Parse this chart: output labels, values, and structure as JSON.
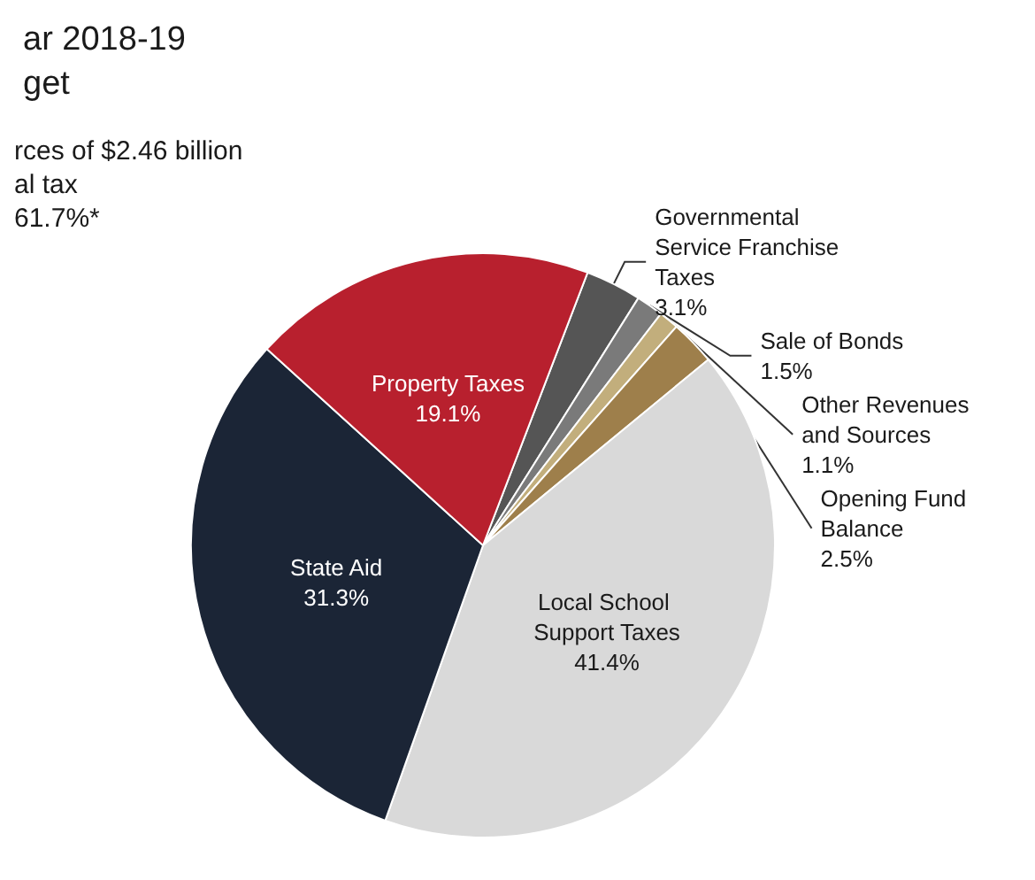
{
  "chart_data": {
    "type": "pie",
    "title": "ar 2018-19",
    "subtitle": "get",
    "annotations": [
      "rces of $2.46 billion",
      "al tax",
      "61.7%*"
    ],
    "categories": [
      "Governmental Service Franchise Taxes",
      "Sale of Bonds",
      "Other Revenues and Sources",
      "Opening Fund Balance",
      "Local School Support Taxes",
      "State Aid",
      "Property Taxes"
    ],
    "values": [
      3.1,
      1.5,
      1.1,
      2.5,
      41.4,
      31.3,
      19.1
    ],
    "value_labels": [
      "3.1%",
      "1.5%",
      "1.1%",
      "2.5%",
      "41.4%",
      "31.3%",
      "19.1%"
    ],
    "colors": [
      "#555555",
      "#7a7a7a",
      "#c2ae7c",
      "#9e7f4b",
      "#d9d9d9",
      "#1b2536",
      "#b8202e"
    ],
    "legend": false
  }
}
